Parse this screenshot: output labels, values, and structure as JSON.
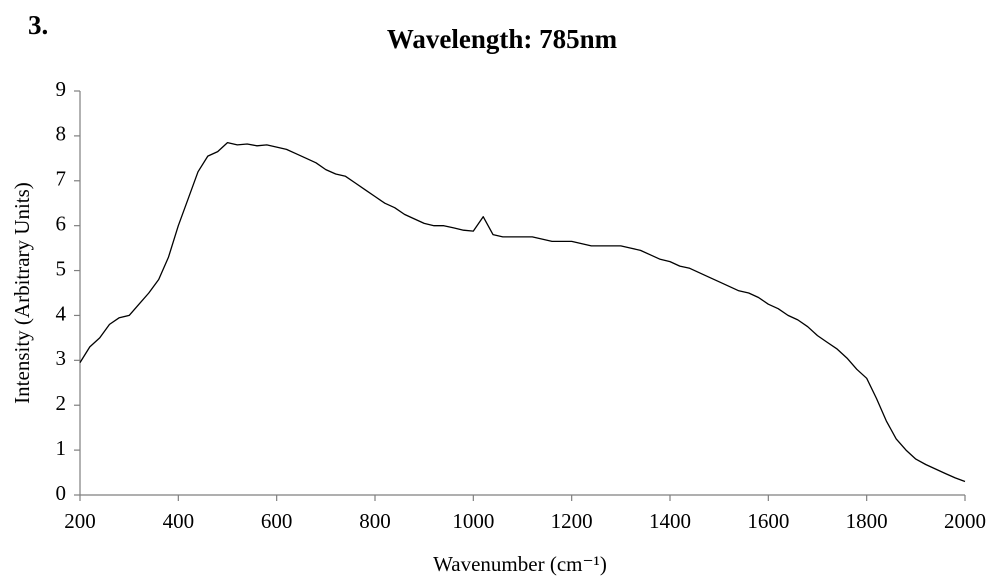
{
  "chart_data": {
    "type": "line",
    "panel_label": "3.",
    "title": "Wavelength: 785nm",
    "x_label": "Wavenumber (cm⁻¹)",
    "y_label": "Intensity (Arbitrary Units)",
    "color": "#000000",
    "x": [
      200,
      220,
      240,
      260,
      280,
      300,
      320,
      340,
      360,
      380,
      400,
      420,
      440,
      460,
      480,
      500,
      520,
      540,
      560,
      580,
      600,
      620,
      640,
      660,
      680,
      700,
      720,
      740,
      760,
      780,
      800,
      820,
      840,
      860,
      880,
      900,
      920,
      940,
      960,
      980,
      1000,
      1020,
      1040,
      1060,
      1080,
      1100,
      1120,
      1140,
      1160,
      1180,
      1200,
      1220,
      1240,
      1260,
      1280,
      1300,
      1320,
      1340,
      1360,
      1380,
      1400,
      1420,
      1440,
      1460,
      1480,
      1500,
      1520,
      1540,
      1560,
      1580,
      1600,
      1620,
      1640,
      1660,
      1680,
      1700,
      1720,
      1740,
      1760,
      1780,
      1800,
      1820,
      1840,
      1860,
      1880,
      1900,
      1920,
      1940,
      1960,
      1980,
      2000
    ],
    "values": [
      2.95,
      3.3,
      3.5,
      3.8,
      3.95,
      4.0,
      4.25,
      4.5,
      4.8,
      5.3,
      6.0,
      6.6,
      7.2,
      7.55,
      7.65,
      7.85,
      7.8,
      7.82,
      7.78,
      7.8,
      7.75,
      7.7,
      7.6,
      7.5,
      7.4,
      7.25,
      7.15,
      7.1,
      6.95,
      6.8,
      6.65,
      6.5,
      6.4,
      6.25,
      6.15,
      6.05,
      6.0,
      6.0,
      5.95,
      5.9,
      5.88,
      6.2,
      5.8,
      5.75,
      5.75,
      5.75,
      5.75,
      5.7,
      5.65,
      5.65,
      5.65,
      5.6,
      5.55,
      5.55,
      5.55,
      5.55,
      5.5,
      5.45,
      5.35,
      5.25,
      5.2,
      5.1,
      5.05,
      4.95,
      4.85,
      4.75,
      4.65,
      4.55,
      4.5,
      4.4,
      4.25,
      4.15,
      4.0,
      3.9,
      3.75,
      3.55,
      3.4,
      3.25,
      3.05,
      2.8,
      2.6,
      2.15,
      1.65,
      1.25,
      1.0,
      0.8,
      0.68,
      0.58,
      0.48,
      0.38,
      0.3
    ],
    "xlim": [
      200,
      2000
    ],
    "xticks": [
      200,
      400,
      600,
      800,
      1000,
      1200,
      1400,
      1600,
      1800,
      2000
    ],
    "ylim": [
      0,
      9
    ],
    "yticks": [
      0,
      1,
      2,
      3,
      4,
      5,
      6,
      7,
      8,
      9
    ],
    "grid": false
  }
}
